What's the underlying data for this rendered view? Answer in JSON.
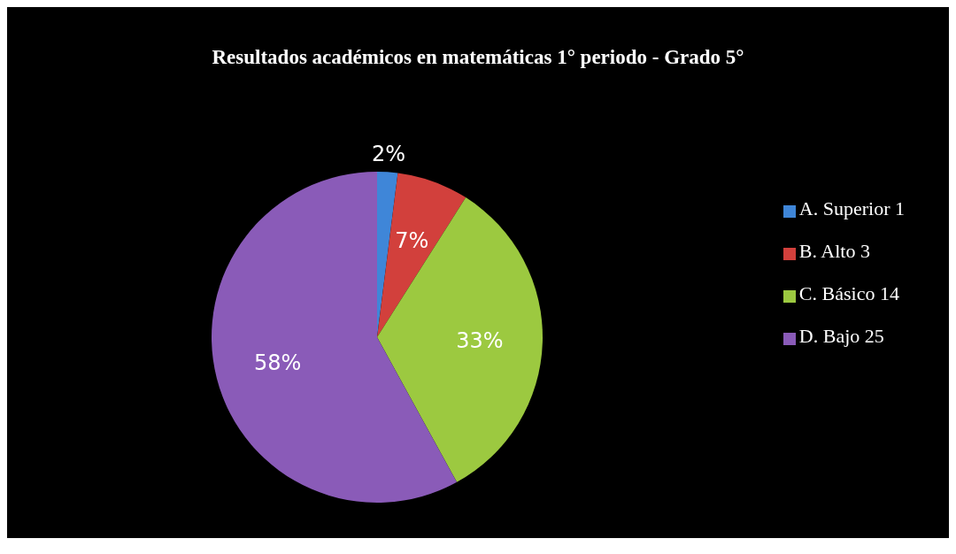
{
  "chart_data": {
    "type": "pie",
    "title": "Resultados académicos en matemáticas 1° periodo - Grado 5°",
    "categories": [
      "A. Superior 1",
      "B. Alto 3",
      "C. Básico 14",
      "D. Bajo 25"
    ],
    "values": [
      2,
      7,
      33,
      58
    ],
    "colors": [
      "#3f86d8",
      "#d2403c",
      "#9cc940",
      "#8a5bb8"
    ],
    "value_labels": [
      "2%",
      "7%",
      "33%",
      "58%"
    ],
    "legend": "right"
  }
}
